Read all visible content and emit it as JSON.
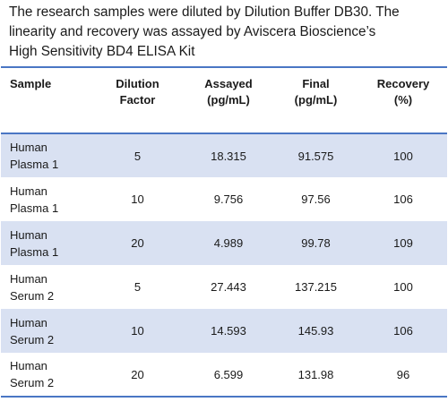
{
  "intro": {
    "line1": "The research samples were diluted by Dilution Buffer DB30. The",
    "line2": "linearity and recovery was assayed by Aviscera Bioscience’s",
    "line3": "High Sensitivity BD4 ELISA Kit"
  },
  "table": {
    "headers": [
      {
        "line1": "Sample",
        "line2": ""
      },
      {
        "line1": "Dilution",
        "line2": "Factor"
      },
      {
        "line1": "Assayed",
        "line2": "(pg/mL)"
      },
      {
        "line1": "Final",
        "line2": "(pg/mL)"
      },
      {
        "line1": "Recovery",
        "line2": "(%)"
      }
    ],
    "rows": [
      {
        "sample_line1": "Human",
        "sample_line2": "Plasma 1",
        "dilution": "5",
        "assayed": "18.315",
        "final": "91.575",
        "recovery": "100"
      },
      {
        "sample_line1": "Human",
        "sample_line2": "Plasma 1",
        "dilution": "10",
        "assayed": "9.756",
        "final": "97.56",
        "recovery": "106"
      },
      {
        "sample_line1": "Human",
        "sample_line2": "Plasma 1",
        "dilution": "20",
        "assayed": "4.989",
        "final": "99.78",
        "recovery": "109"
      },
      {
        "sample_line1": "Human",
        "sample_line2": "Serum 2",
        "dilution": "5",
        "assayed": "27.443",
        "final": "137.215",
        "recovery": "100"
      },
      {
        "sample_line1": "Human",
        "sample_line2": "Serum 2",
        "dilution": "10",
        "assayed": "14.593",
        "final": "145.93",
        "recovery": "106"
      },
      {
        "sample_line1": "Human",
        "sample_line2": "Serum 2",
        "dilution": "20",
        "assayed": "6.599",
        "final": "131.98",
        "recovery": "96"
      }
    ]
  },
  "colors": {
    "rule": "#4a76c4",
    "band": "#d9e1f2",
    "text": "#1a1a1a"
  }
}
